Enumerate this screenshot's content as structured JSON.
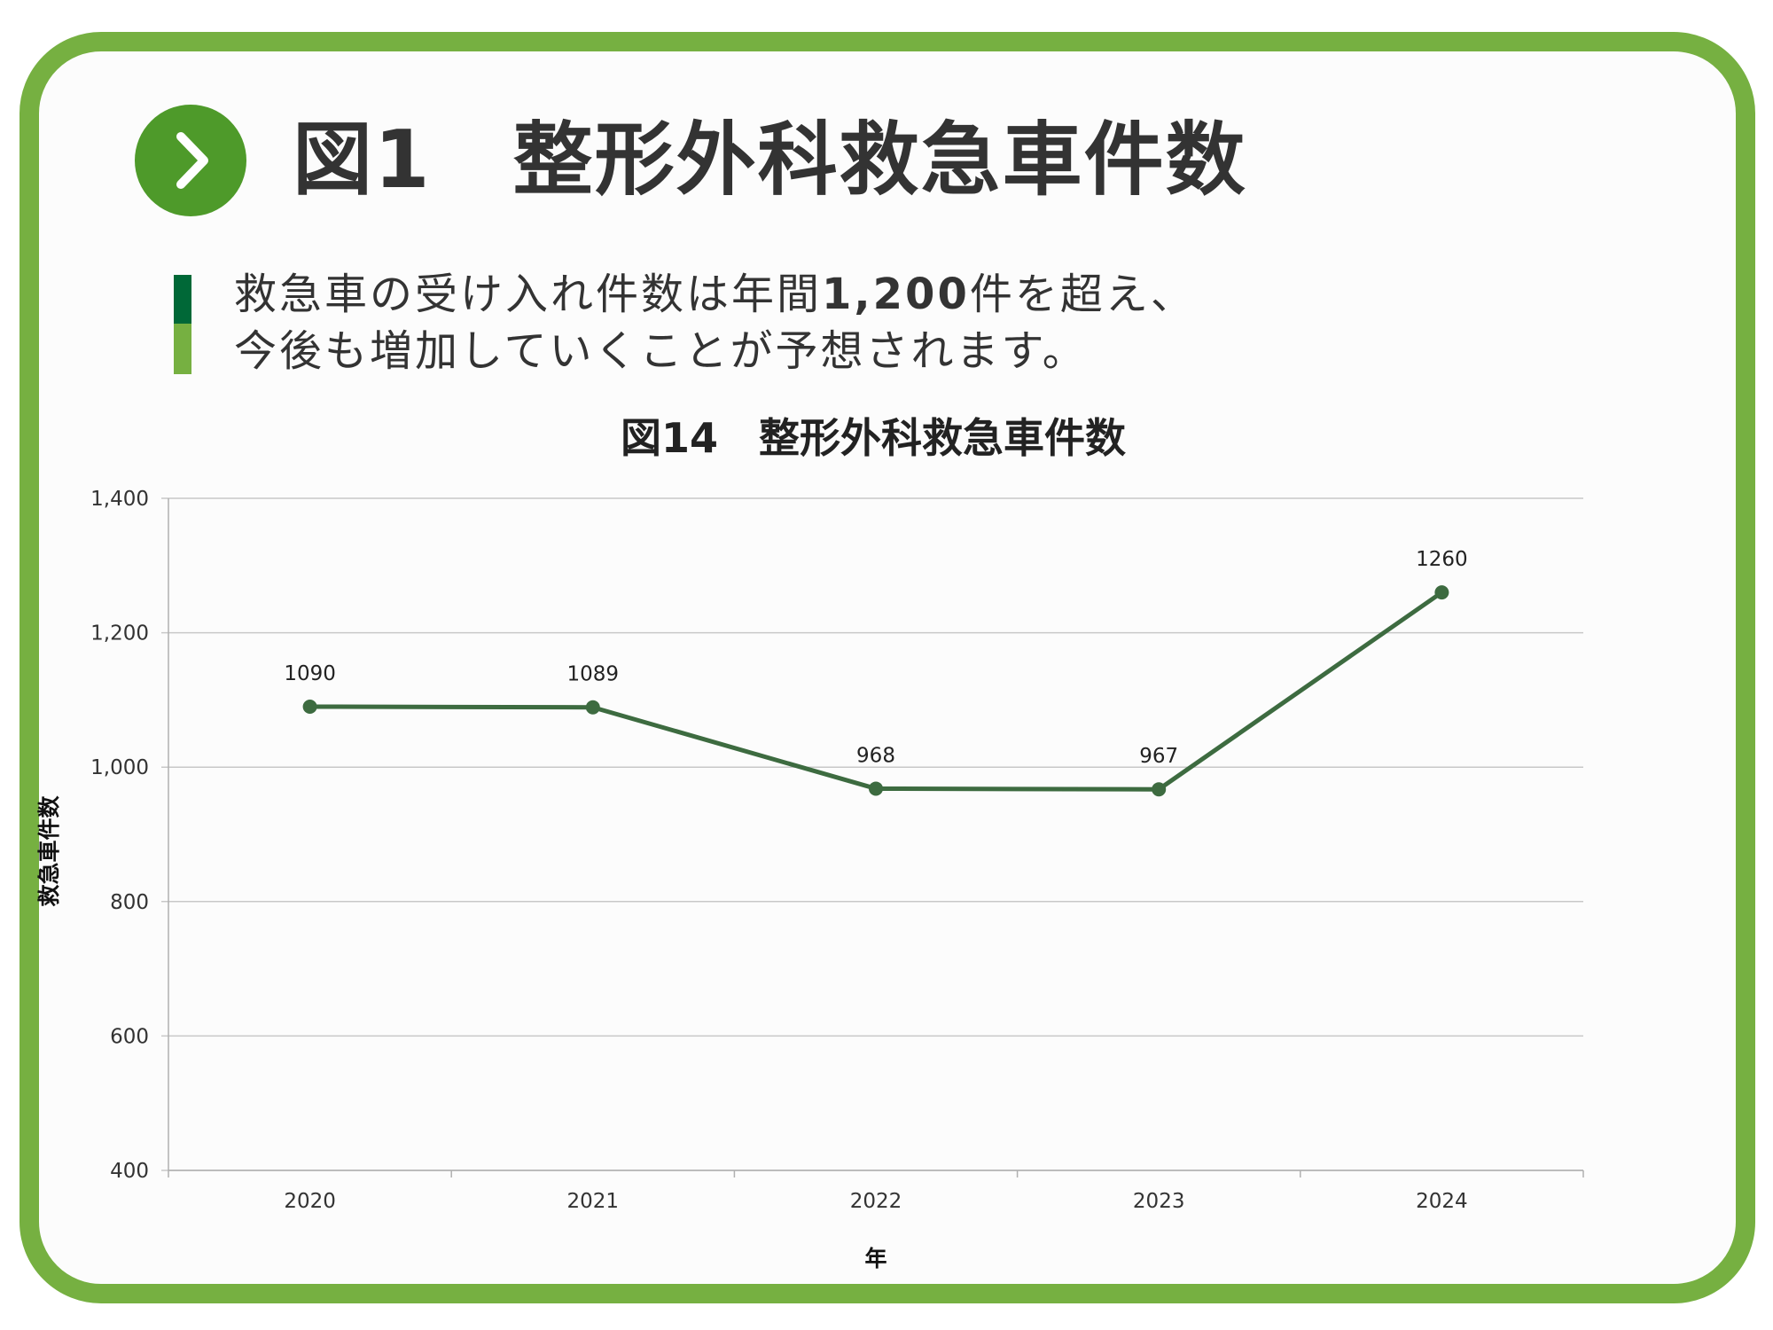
{
  "header": {
    "title": "図1　整形外科救急車件数"
  },
  "summary": {
    "line1_prefix": "救急車の受け入れ件数は年間",
    "line1_bold": "1,200",
    "line1_suffix": "件を超え、",
    "line2": "今後も増加していくことが予想されます。"
  },
  "colors": {
    "frame": "#76b041",
    "badge": "#4e9a2a",
    "bar_dark": "#006837",
    "line": "#3d6b40"
  },
  "chart_data": {
    "type": "line",
    "title": "図14　整形外科救急車件数",
    "xlabel": "年",
    "ylabel": "救急車件数",
    "categories": [
      "2020",
      "2021",
      "2022",
      "2023",
      "2024"
    ],
    "values": [
      1090,
      1089,
      968,
      967,
      1260
    ],
    "data_labels": [
      "1090",
      "1089",
      "968",
      "967",
      "1260"
    ],
    "ylim": [
      400,
      1400
    ],
    "y_ticks": [
      400,
      600,
      800,
      1000,
      1200,
      1400
    ],
    "y_tick_labels": [
      "400",
      "600",
      "800",
      "1,000",
      "1,200",
      "1,400"
    ],
    "grid": true,
    "legend": "none"
  }
}
